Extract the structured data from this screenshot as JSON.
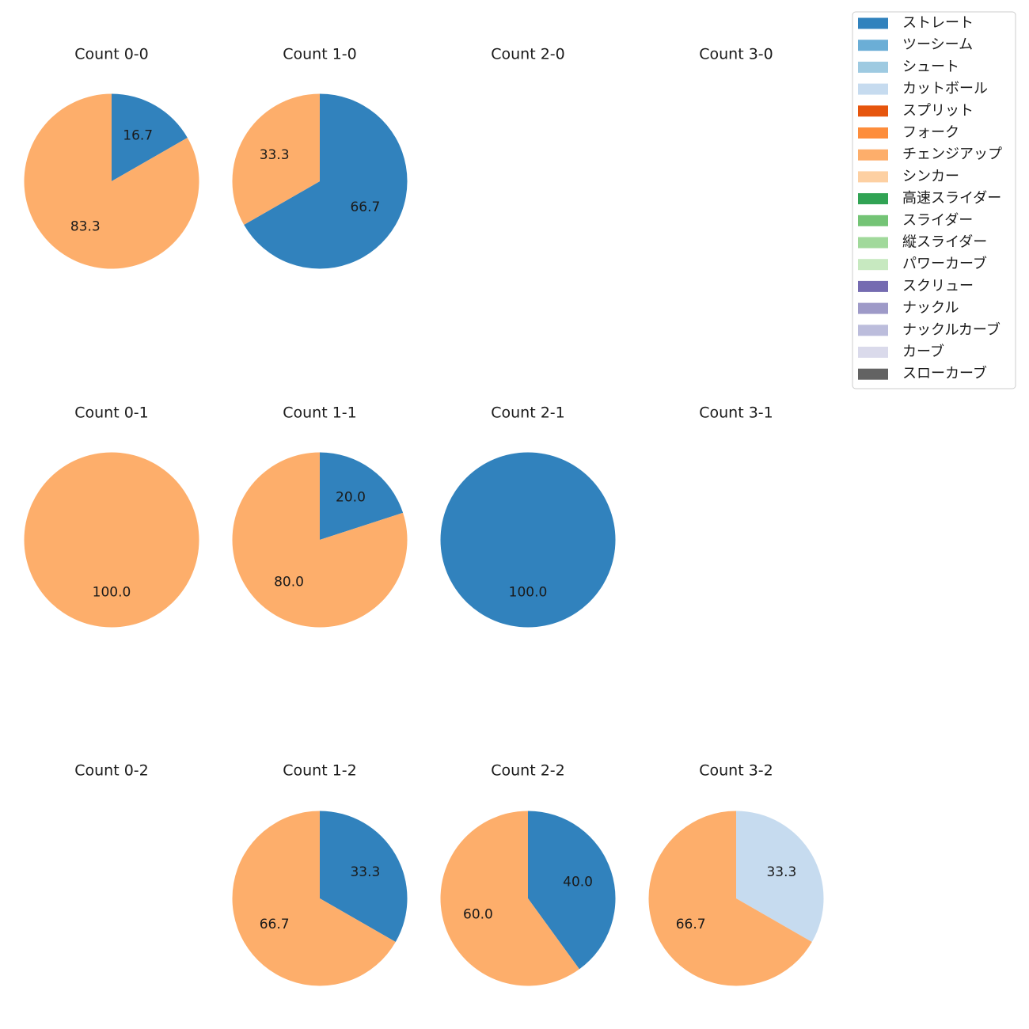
{
  "chart_data": {
    "type": "pie",
    "legend": {
      "placement": "top-right",
      "entries": [
        {
          "label": "ストレート",
          "color": "#3182bd"
        },
        {
          "label": "ツーシーム",
          "color": "#6baed6"
        },
        {
          "label": "シュート",
          "color": "#9ecae1"
        },
        {
          "label": "カットボール",
          "color": "#c6dbef"
        },
        {
          "label": "スプリット",
          "color": "#e6550d"
        },
        {
          "label": "フォーク",
          "color": "#fd8d3c"
        },
        {
          "label": "チェンジアップ",
          "color": "#fdae6b"
        },
        {
          "label": "シンカー",
          "color": "#fdd0a2"
        },
        {
          "label": "高速スライダー",
          "color": "#31a354"
        },
        {
          "label": "スライダー",
          "color": "#74c476"
        },
        {
          "label": "縦スライダー",
          "color": "#a1d99b"
        },
        {
          "label": "パワーカーブ",
          "color": "#c7e9c0"
        },
        {
          "label": "スクリュー",
          "color": "#756bb1"
        },
        {
          "label": "ナックル",
          "color": "#9e9ac8"
        },
        {
          "label": "ナックルカーブ",
          "color": "#bcbddc"
        },
        {
          "label": "カーブ",
          "color": "#dadaeb"
        },
        {
          "label": "スローカーブ",
          "color": "#636363"
        }
      ]
    },
    "panels": [
      {
        "title": "Count 0-0",
        "slices": [
          {
            "pitch": "ストレート",
            "value": 16.7,
            "label": "16.7"
          },
          {
            "pitch": "チェンジアップ",
            "value": 83.3,
            "label": "83.3"
          }
        ]
      },
      {
        "title": "Count 1-0",
        "slices": [
          {
            "pitch": "ストレート",
            "value": 66.7,
            "label": "66.7"
          },
          {
            "pitch": "チェンジアップ",
            "value": 33.3,
            "label": "33.3"
          }
        ]
      },
      {
        "title": "Count 2-0",
        "slices": []
      },
      {
        "title": "Count 3-0",
        "slices": []
      },
      {
        "title": "Count 0-1",
        "slices": [
          {
            "pitch": "チェンジアップ",
            "value": 100.0,
            "label": "100.0"
          }
        ]
      },
      {
        "title": "Count 1-1",
        "slices": [
          {
            "pitch": "ストレート",
            "value": 20.0,
            "label": "20.0"
          },
          {
            "pitch": "チェンジアップ",
            "value": 80.0,
            "label": "80.0"
          }
        ]
      },
      {
        "title": "Count 2-1",
        "slices": [
          {
            "pitch": "ストレート",
            "value": 100.0,
            "label": "100.0"
          }
        ]
      },
      {
        "title": "Count 3-1",
        "slices": []
      },
      {
        "title": "Count 0-2",
        "slices": []
      },
      {
        "title": "Count 1-2",
        "slices": [
          {
            "pitch": "ストレート",
            "value": 33.3,
            "label": "33.3"
          },
          {
            "pitch": "チェンジアップ",
            "value": 66.7,
            "label": "66.7"
          }
        ]
      },
      {
        "title": "Count 2-2",
        "slices": [
          {
            "pitch": "ストレート",
            "value": 40.0,
            "label": "40.0"
          },
          {
            "pitch": "チェンジアップ",
            "value": 60.0,
            "label": "60.0"
          }
        ]
      },
      {
        "title": "Count 3-2",
        "slices": [
          {
            "pitch": "カットボール",
            "value": 33.3,
            "label": "33.3"
          },
          {
            "pitch": "チェンジアップ",
            "value": 66.7,
            "label": "66.7"
          }
        ]
      }
    ]
  }
}
